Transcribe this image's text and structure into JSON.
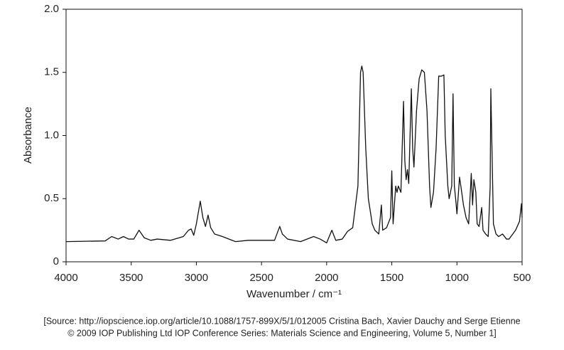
{
  "chart_data": {
    "type": "line",
    "xlabel": "Wavenumber / cm⁻¹",
    "ylabel": "Absorbance",
    "xlim": [
      4000,
      500
    ],
    "ylim": [
      0,
      2
    ],
    "xticks": [
      4000,
      3500,
      3000,
      2500,
      2000,
      1500,
      1000,
      500
    ],
    "yticks": [
      0,
      {
        "value": 0.5,
        "label": "0.5"
      },
      {
        "value": 1,
        "label": "1.0"
      },
      {
        "value": 1.5,
        "label": "1.5"
      },
      {
        "value": 2,
        "label": "2.0"
      }
    ],
    "grid": false,
    "series": [
      {
        "color": "#111111",
        "x": [
          4000,
          3700,
          3650,
          3600,
          3560,
          3520,
          3480,
          3440,
          3400,
          3350,
          3300,
          3200,
          3100,
          3060,
          3040,
          3020,
          3000,
          2970,
          2950,
          2930,
          2910,
          2890,
          2860,
          2800,
          2700,
          2600,
          2500,
          2400,
          2360,
          2340,
          2300,
          2200,
          2100,
          2050,
          2000,
          1960,
          1930,
          1880,
          1840,
          1800,
          1760,
          1740,
          1730,
          1720,
          1700,
          1680,
          1650,
          1630,
          1600,
          1580,
          1570,
          1540,
          1510,
          1500,
          1490,
          1470,
          1460,
          1450,
          1430,
          1410,
          1400,
          1390,
          1380,
          1370,
          1350,
          1340,
          1330,
          1310,
          1290,
          1270,
          1250,
          1230,
          1210,
          1200,
          1180,
          1160,
          1140,
          1120,
          1100,
          1090,
          1070,
          1060,
          1040,
          1030,
          1020,
          1010,
          1000,
          980,
          970,
          950,
          930,
          910,
          890,
          880,
          870,
          855,
          845,
          830,
          810,
          800,
          780,
          760,
          745,
          740,
          735,
          720,
          700,
          680,
          650,
          620,
          600,
          550,
          520,
          505,
          500
        ],
        "values": [
          0.16,
          0.165,
          0.2,
          0.18,
          0.2,
          0.18,
          0.18,
          0.25,
          0.19,
          0.17,
          0.18,
          0.17,
          0.2,
          0.25,
          0.26,
          0.21,
          0.3,
          0.48,
          0.35,
          0.28,
          0.37,
          0.27,
          0.22,
          0.2,
          0.16,
          0.17,
          0.17,
          0.17,
          0.28,
          0.22,
          0.18,
          0.16,
          0.2,
          0.18,
          0.15,
          0.25,
          0.17,
          0.18,
          0.24,
          0.27,
          0.6,
          1.5,
          1.55,
          1.5,
          0.9,
          0.5,
          0.3,
          0.25,
          0.22,
          0.45,
          0.25,
          0.27,
          0.35,
          0.72,
          0.3,
          0.6,
          0.55,
          0.6,
          0.55,
          1.27,
          0.8,
          0.65,
          0.73,
          0.62,
          1.37,
          0.9,
          0.75,
          1.2,
          1.45,
          1.52,
          1.5,
          1.2,
          0.6,
          0.43,
          0.55,
          0.9,
          1.47,
          1.47,
          1.48,
          1.0,
          0.6,
          0.5,
          0.6,
          1.33,
          0.6,
          0.5,
          0.38,
          0.67,
          0.6,
          0.45,
          0.35,
          0.3,
          0.7,
          0.45,
          0.65,
          0.55,
          0.3,
          0.28,
          0.43,
          0.25,
          0.22,
          0.2,
          0.6,
          1.37,
          1.1,
          0.3,
          0.22,
          0.2,
          0.22,
          0.18,
          0.18,
          0.25,
          0.32,
          0.46,
          0.35
        ]
      }
    ]
  },
  "caption": [
    "[Source: http://iopscience.iop.org/article/10.1088/1757-899X/5/1/012005 Cristina Bach, Xavier Dauchy and Serge Etienne",
    "© 2009 IOP Publishing Ltd IOP Conference Series: Materials Science and Engineering, Volume 5, Number 1]"
  ]
}
